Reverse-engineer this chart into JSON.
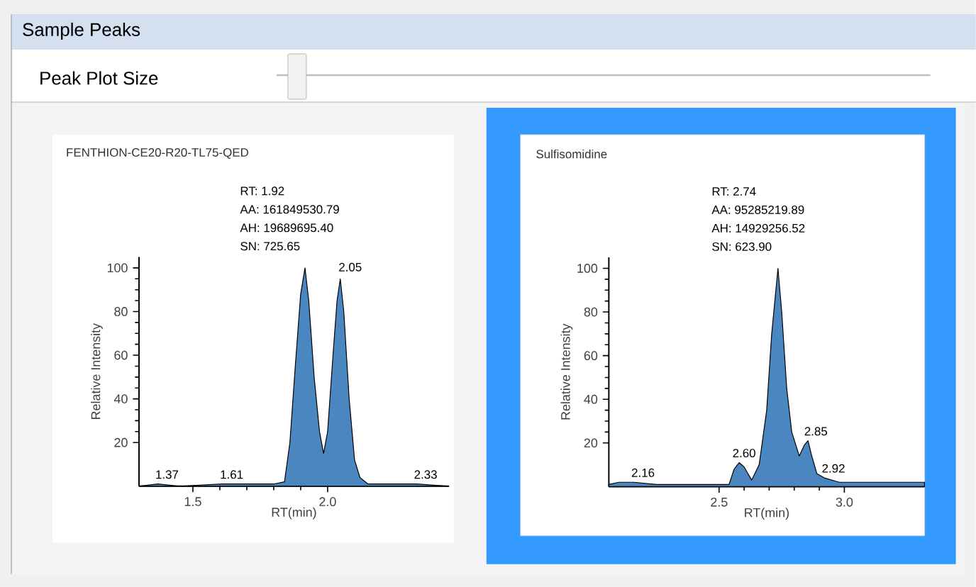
{
  "chart_data": [
    {
      "type": "other",
      "title": "Sample Peaks",
      "annotations": [
        "Peak Plot Size"
      ]
    },
    {
      "type": "area",
      "title": "FENTHION-CE20-R20-TL75-QED",
      "xlabel": "RT(min)",
      "ylabel": "Relative Intensity",
      "color": "#4a86c0",
      "x": [
        1.3,
        1.37,
        1.45,
        1.61,
        1.8,
        1.84,
        1.86,
        1.88,
        1.9,
        1.916,
        1.93,
        1.95,
        1.97,
        1.985,
        2.0,
        2.02,
        2.035,
        2.047,
        2.06,
        2.08,
        2.1,
        2.12,
        2.15,
        2.2,
        2.33,
        2.45
      ],
      "values": [
        0,
        1,
        0,
        1,
        1,
        2,
        20,
        55,
        88,
        100,
        85,
        50,
        25,
        15,
        25,
        60,
        85,
        95,
        80,
        40,
        12,
        4,
        1,
        1,
        1,
        0
      ],
      "xlim": [
        1.3,
        2.45
      ],
      "ylim": [
        0,
        105
      ],
      "xticks": [
        1.5,
        {
          "value": 2.0,
          "label": "2.0"
        }
      ],
      "yticks": [
        20,
        40,
        60,
        80,
        100
      ],
      "annotations": [
        "RT: 1.92",
        "AA: 161849530.79",
        "AH: 19689695.40",
        "SN: 725.65",
        {
          "text": "2.05",
          "x": 2.05,
          "y": 96
        },
        {
          "text": "1.37",
          "x": 1.37,
          "y": 1
        },
        {
          "text": "1.61",
          "x": 1.61,
          "y": 1
        },
        {
          "text": "2.33",
          "x": 2.33,
          "y": 1
        }
      ]
    },
    {
      "type": "area",
      "title": "Sulfisomidine",
      "xlabel": "RT(min)",
      "ylabel": "Relative Intensity",
      "color": "#4a86c0",
      "x": [
        2.06,
        2.1,
        2.16,
        2.25,
        2.4,
        2.5,
        2.54,
        2.56,
        2.58,
        2.6,
        2.63,
        2.66,
        2.69,
        2.71,
        2.735,
        2.75,
        2.77,
        2.79,
        2.82,
        2.84,
        2.855,
        2.87,
        2.89,
        2.92,
        2.98,
        3.1,
        3.2,
        3.32
      ],
      "values": [
        1,
        2,
        2,
        1,
        1,
        1,
        1,
        8,
        11,
        9,
        3,
        10,
        35,
        70,
        100,
        80,
        45,
        25,
        14,
        19,
        21,
        14,
        6,
        4,
        2,
        2,
        2,
        2
      ],
      "xlim": [
        2.06,
        3.32
      ],
      "ylim": [
        0,
        105
      ],
      "xticks": [
        2.5,
        {
          "value": 3.0,
          "label": "3.0"
        }
      ],
      "yticks": [
        20,
        40,
        60,
        80,
        100
      ],
      "annotations": [
        "RT: 2.74",
        "AA: 95285219.89",
        "AH: 14929256.52",
        "SN: 623.90",
        {
          "text": "2.16",
          "x": 2.16,
          "y": 2
        },
        {
          "text": "2.60",
          "x": 2.6,
          "y": 11
        },
        {
          "text": "2.85",
          "x": 2.85,
          "y": 21
        },
        {
          "text": "2.92",
          "x": 2.92,
          "y": 4
        }
      ]
    }
  ]
}
